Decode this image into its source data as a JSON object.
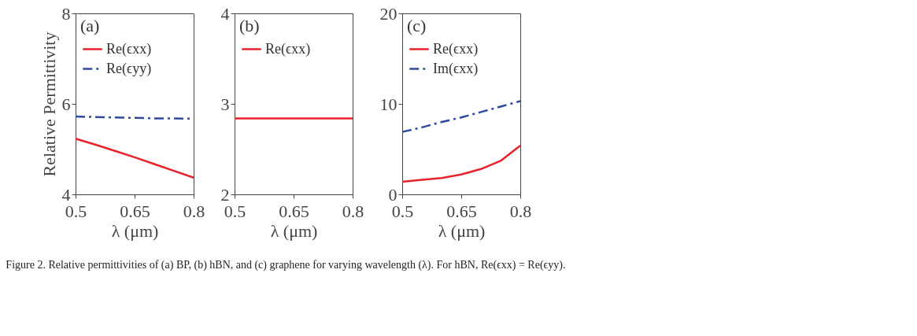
{
  "chart_data": [
    {
      "type": "line",
      "ylabel": "Relative Permittivity",
      "xlabel": "λ (μm)",
      "xlim": [
        0.5,
        0.8
      ],
      "xticks": [
        0.5,
        0.65,
        0.8
      ],
      "ylim": [
        4,
        8
      ],
      "yticks": [
        4,
        6,
        8
      ],
      "legend": "top left",
      "grid": false,
      "annotations": [
        "(a)",
        "Figure 2.  Relative permittivities of (a) BP, (b) hBN, and (c) graphene for varying wavelength (λ). For hBN, Re(ϵxx) = Re(ϵyy)."
      ],
      "x": [
        0.5,
        0.55,
        0.6,
        0.65,
        0.7,
        0.75,
        0.8
      ],
      "series": [
        {
          "name": "Re(ϵxx)",
          "color": "#e8212a",
          "line_style": "solid",
          "values": [
            5.23,
            5.1,
            4.96,
            4.82,
            4.67,
            4.52,
            4.37
          ]
        },
        {
          "name": "Re(ϵyy)",
          "color": "#2e4a9e",
          "line_style": "dashdot",
          "values": [
            5.72,
            5.71,
            5.7,
            5.69,
            5.68,
            5.68,
            5.67
          ]
        }
      ]
    },
    {
      "type": "line",
      "xlabel": "λ (μm)",
      "xlim": [
        0.5,
        0.8
      ],
      "xticks": [
        0.5,
        0.65,
        0.8
      ],
      "ylim": [
        2,
        4
      ],
      "yticks": [
        2,
        3,
        4
      ],
      "legend": "top left",
      "grid": false,
      "annotations": [
        "(b)"
      ],
      "x": [
        0.5,
        0.8
      ],
      "series": [
        {
          "name": "Re(ϵxx)",
          "color": "#e8212a",
          "line_style": "solid",
          "values": [
            2.84,
            2.84
          ]
        }
      ]
    },
    {
      "type": "line",
      "xlabel": "λ (μm)",
      "xlim": [
        0.5,
        0.8
      ],
      "xticks": [
        0.5,
        0.65,
        0.8
      ],
      "ylim": [
        0,
        20
      ],
      "yticks": [
        0,
        10,
        20
      ],
      "legend": "top left",
      "grid": false,
      "annotations": [
        "(c)"
      ],
      "x": [
        0.5,
        0.55,
        0.6,
        0.65,
        0.7,
        0.75,
        0.8
      ],
      "series": [
        {
          "name": "Re(ϵxx)",
          "color": "#e8212a",
          "line_style": "solid",
          "values": [
            1.4,
            1.6,
            1.8,
            2.2,
            2.8,
            3.7,
            5.4
          ]
        },
        {
          "name": "Im(ϵxx)",
          "color": "#2e4a9e",
          "line_style": "dashdot",
          "values": [
            6.9,
            7.4,
            8.0,
            8.5,
            9.1,
            9.7,
            10.3
          ]
        }
      ]
    }
  ]
}
